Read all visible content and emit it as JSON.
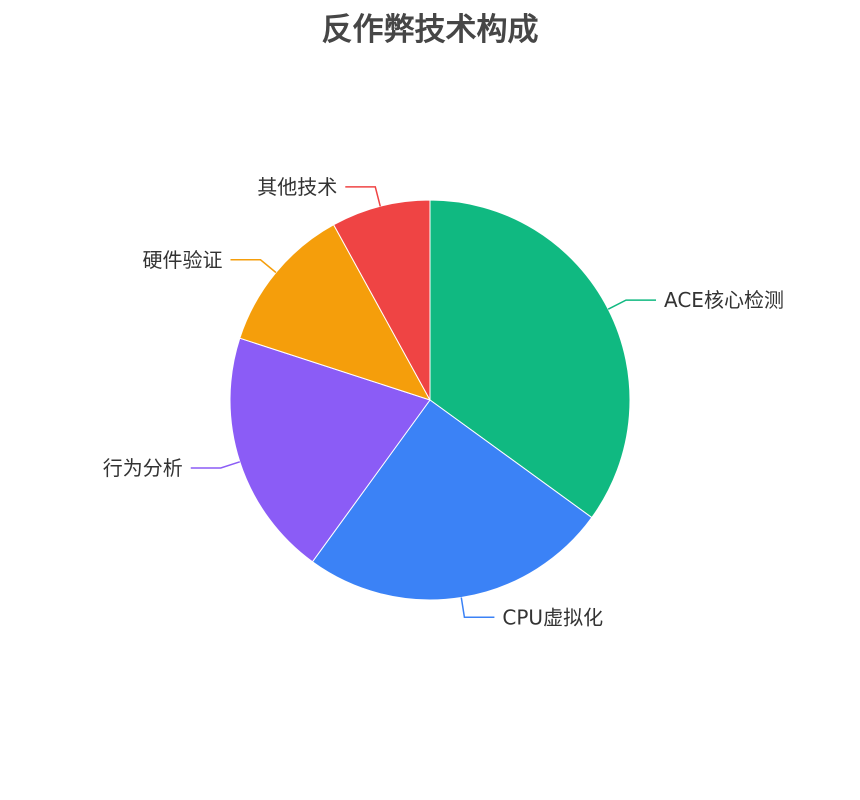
{
  "chart_data": {
    "type": "pie",
    "title": "反作弊技术构成",
    "legend": "none",
    "slices": [
      {
        "label": "ACE核心检测",
        "value": 35,
        "color": "#10b981"
      },
      {
        "label": "CPU虚拟化",
        "value": 25,
        "color": "#3b82f6"
      },
      {
        "label": "行为分析",
        "value": 20,
        "color": "#8b5cf6"
      },
      {
        "label": "硬件验证",
        "value": 12,
        "color": "#f59e0b"
      },
      {
        "label": "其他技术",
        "value": 8,
        "color": "#ef4444"
      }
    ]
  }
}
